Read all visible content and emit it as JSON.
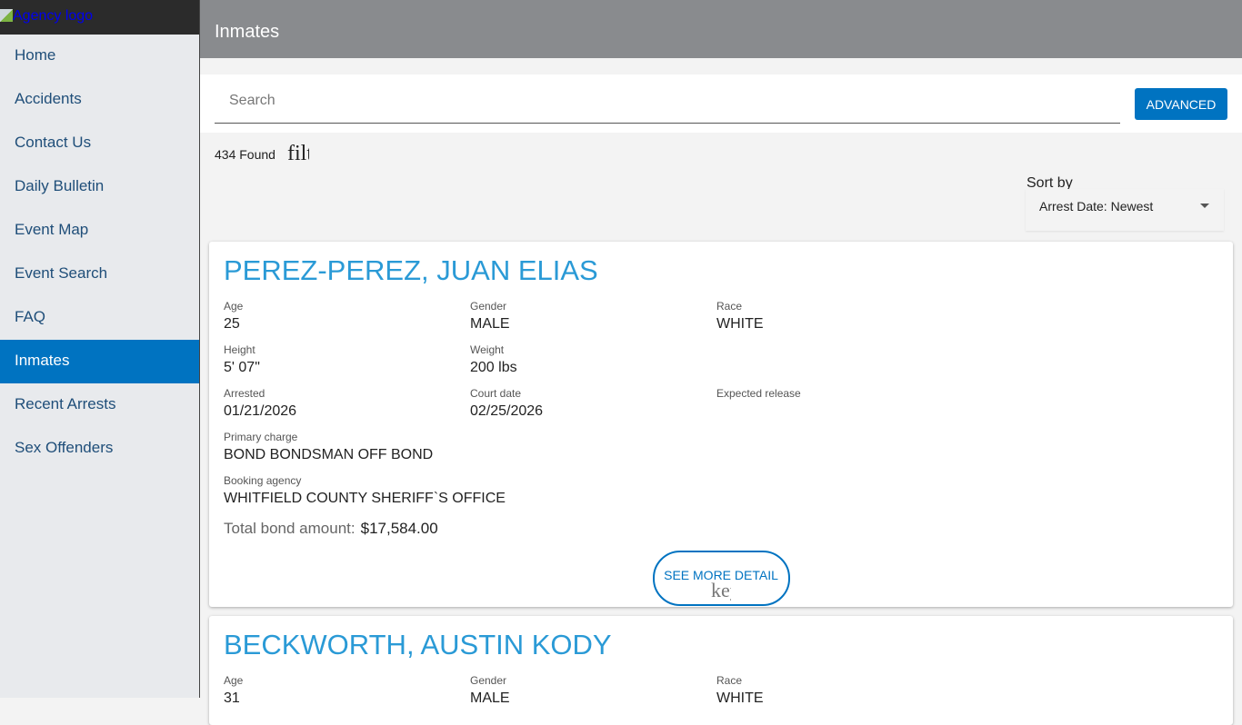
{
  "sidebar": {
    "logo_alt": "Agency logo",
    "items": [
      {
        "label": "Home"
      },
      {
        "label": "Accidents"
      },
      {
        "label": "Contact Us"
      },
      {
        "label": "Daily Bulletin"
      },
      {
        "label": "Event Map"
      },
      {
        "label": "Event Search"
      },
      {
        "label": "FAQ"
      },
      {
        "label": "Inmates",
        "active": true
      },
      {
        "label": "Recent Arrests"
      },
      {
        "label": "Sex Offenders"
      }
    ]
  },
  "header": {
    "title": "Inmates"
  },
  "search": {
    "placeholder": "Search",
    "value": "",
    "advanced_label": "ADVANCED"
  },
  "results": {
    "count_text": "434 Found",
    "filter_glyph": "filter"
  },
  "sort": {
    "label": "Sort by",
    "selected": "Arrest Date: Newest"
  },
  "labels": {
    "age": "Age",
    "gender": "Gender",
    "race": "Race",
    "height": "Height",
    "weight": "Weight",
    "arrested": "Arrested",
    "court_date": "Court date",
    "expected_release": "Expected release",
    "primary_charge": "Primary charge",
    "booking_agency": "Booking agency",
    "total_bond": "Total bond amount:",
    "see_more": "SEE MORE DETAIL",
    "see_more_glyph": "keyboard"
  },
  "colors": {
    "accent": "#0073c1",
    "name": "#2a9ad6",
    "header": "#898b8e"
  },
  "inmates": [
    {
      "name": "PEREZ-PEREZ, JUAN ELIAS",
      "age": "25",
      "gender": "MALE",
      "race": "WHITE",
      "height": "5' 07\"",
      "weight": "200 lbs",
      "arrested": "01/21/2026",
      "court_date": "02/25/2026",
      "expected_release": "",
      "primary_charge": "BOND BONDSMAN OFF BOND",
      "booking_agency": "WHITFIELD COUNTY SHERIFF`S OFFICE",
      "total_bond": "$17,584.00"
    },
    {
      "name": "BECKWORTH, AUSTIN KODY",
      "age": "31",
      "gender": "MALE",
      "race": "WHITE"
    }
  ]
}
